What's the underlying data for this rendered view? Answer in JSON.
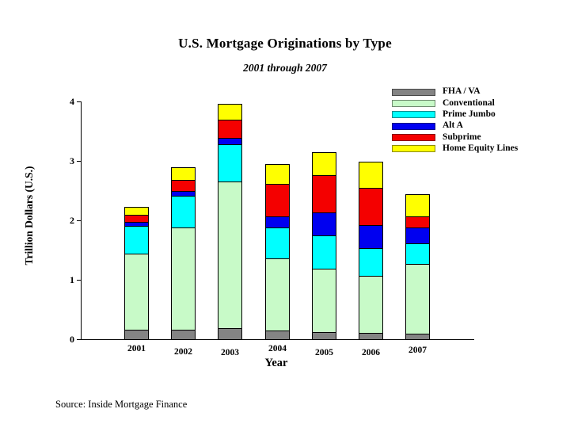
{
  "title": "U.S. Mortgage Originations by Type",
  "subtitle": "2001 through 2007",
  "source": "Source: Inside Mortgage Finance",
  "axes": {
    "x_label": "Year",
    "y_label": "Trillion Dollars (U.S.)"
  },
  "chart_data": {
    "type": "bar",
    "stacked": true,
    "title": "U.S. Mortgage Originations by Type",
    "subtitle": "2001 through 2007",
    "xlabel": "Year",
    "ylabel": "Trillion Dollars (U.S.)",
    "ylim": [
      0,
      4
    ],
    "yticks": [
      0,
      1,
      2,
      3,
      4
    ],
    "grid": false,
    "legend_position": "top-right",
    "units": "trillion USD",
    "categories": [
      "2001",
      "2002",
      "2003",
      "2004",
      "2005",
      "2006",
      "2007"
    ],
    "series": [
      {
        "name": "FHA / VA",
        "color": "#848484",
        "values": [
          0.16,
          0.16,
          0.19,
          0.14,
          0.12,
          0.11,
          0.09
        ]
      },
      {
        "name": "Conventional",
        "color": "#C8FAC8",
        "values": [
          1.28,
          1.72,
          2.47,
          1.21,
          1.06,
          0.96,
          1.17
        ]
      },
      {
        "name": "Prime Jumbo",
        "color": "#00FFFF",
        "values": [
          0.47,
          0.53,
          0.63,
          0.52,
          0.56,
          0.47,
          0.34
        ]
      },
      {
        "name": "Alt A",
        "color": "#0000F0",
        "values": [
          0.07,
          0.08,
          0.11,
          0.18,
          0.39,
          0.38,
          0.27
        ]
      },
      {
        "name": "Subprime",
        "color": "#F40000",
        "values": [
          0.12,
          0.19,
          0.3,
          0.55,
          0.62,
          0.62,
          0.19
        ]
      },
      {
        "name": "Home Equity Lines",
        "color": "#FFFF00",
        "values": [
          0.12,
          0.2,
          0.25,
          0.32,
          0.37,
          0.43,
          0.36
        ]
      }
    ]
  }
}
